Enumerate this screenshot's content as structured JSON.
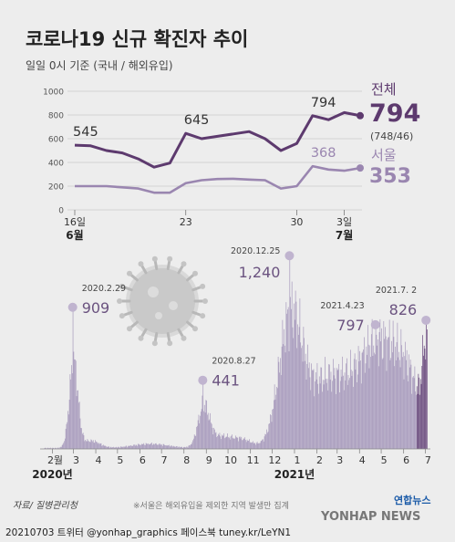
{
  "header": {
    "title": "코로나19 신규 확진자 추이",
    "subtitle": "일일 0시 기준 (국내 / 해외유입)"
  },
  "colors": {
    "total": "#5d3a6e",
    "seoul": "#9a86b0",
    "bar_dark": "#6a4a7e",
    "bar_light": "#a89bbd",
    "grid": "#c8c8c8",
    "text": "#333333",
    "annotation": "#6b5380"
  },
  "chart_data": [
    {
      "type": "line",
      "ylim": [
        0,
        1000
      ],
      "yticks": [
        "1000",
        "800",
        "600",
        "400",
        "200",
        "0"
      ],
      "x_day_index": [
        0,
        7,
        14,
        17
      ],
      "x_labels": [
        "16일",
        "23",
        "30",
        "3일"
      ],
      "month_labels": [
        {
          "text": "6월",
          "at": 0
        },
        {
          "text": "7월",
          "at": 17
        }
      ],
      "series": [
        {
          "name": "전체",
          "key": "total",
          "values": [
            545,
            540,
            500,
            480,
            430,
            360,
            395,
            645,
            600,
            620,
            640,
            660,
            600,
            500,
            560,
            794,
            760,
            820,
            794
          ],
          "last_value": "794",
          "last_breakdown": "(748/46)"
        },
        {
          "name": "서울",
          "key": "seoul",
          "values": [
            200,
            200,
            200,
            190,
            180,
            145,
            145,
            225,
            250,
            260,
            262,
            255,
            250,
            180,
            200,
            368,
            340,
            330,
            353
          ],
          "last_value": "353"
        }
      ],
      "annotations": [
        {
          "index": 0,
          "series": "total",
          "text": "545"
        },
        {
          "index": 7,
          "series": "total",
          "text": "645"
        },
        {
          "index": 15,
          "series": "total",
          "text": "794"
        },
        {
          "index": 15,
          "series": "seoul",
          "text": "368"
        }
      ]
    },
    {
      "type": "bar",
      "x_month_labels": [
        "2월",
        "3",
        "4",
        "5",
        "6",
        "7",
        "8",
        "9",
        "10",
        "11",
        "12",
        "1",
        "2",
        "3",
        "4",
        "5",
        "6",
        "7"
      ],
      "year_labels": [
        {
          "text": "2020년",
          "month_index": 0
        },
        {
          "text": "2021년",
          "month_index": 11
        }
      ],
      "peaks": [
        {
          "date": "2020.2.29",
          "value": 909
        },
        {
          "date": "2020.8.27",
          "value": 441
        },
        {
          "date": "2020.12.25",
          "value": 1240
        },
        {
          "date": "2021.4.23",
          "value": 797
        },
        {
          "date": "2021.7. 2",
          "value": 826
        }
      ]
    }
  ],
  "footer": {
    "source": "자료/ 질병관리청",
    "note": "※서울은 해외유입을 제외한 지역 발생만 집계",
    "credit": "20210703 트위터 @yonhap_graphics  페이스북 tuney.kr/LeYN1",
    "logo_top": "연합뉴스",
    "logo_bottom": "YONHAP NEWS"
  }
}
